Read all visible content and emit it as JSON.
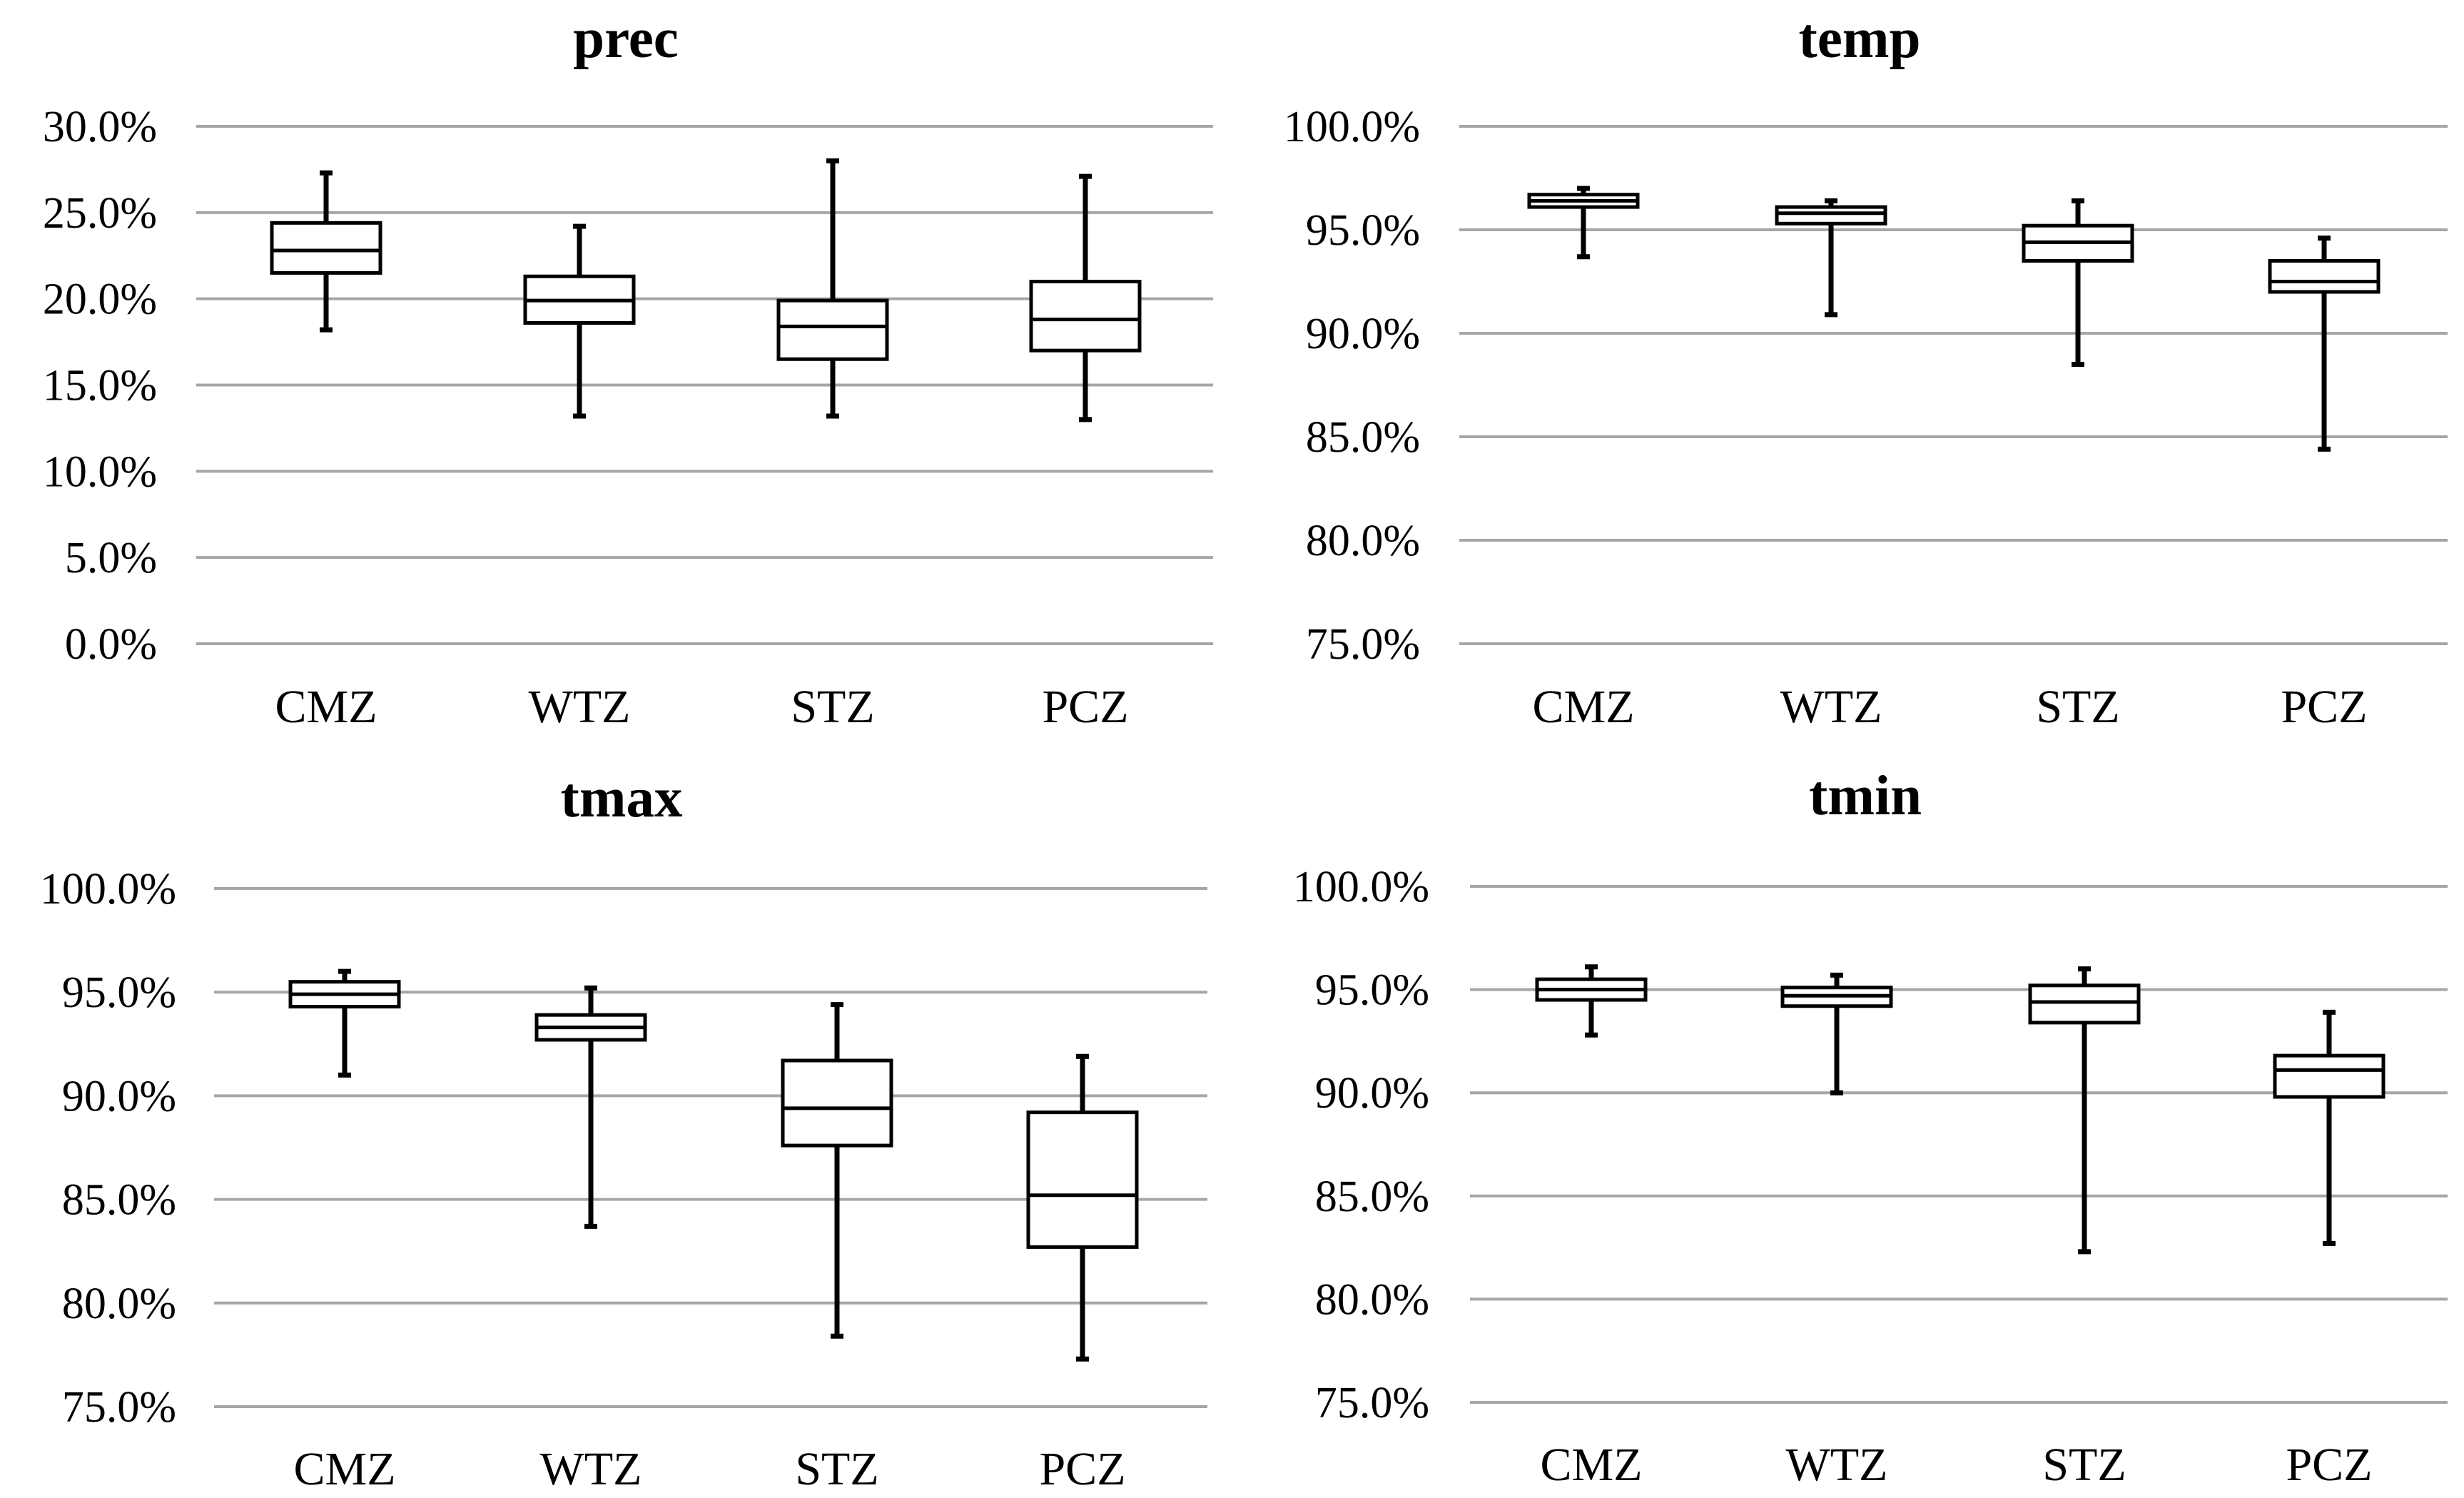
{
  "chart_data": [
    {
      "type": "boxplot",
      "title": "prec",
      "categories": [
        "CMZ",
        "WTZ",
        "STZ",
        "PCZ"
      ],
      "y_ticks": [
        "0.0%",
        "5.0%",
        "10.0%",
        "15.0%",
        "20.0%",
        "25.0%",
        "30.0%"
      ],
      "ylim": [
        0,
        30
      ],
      "boxes": [
        {
          "name": "CMZ",
          "min": 18.2,
          "q1": 21.5,
          "median": 22.8,
          "q3": 24.4,
          "max": 27.3
        },
        {
          "name": "WTZ",
          "min": 13.2,
          "q1": 18.6,
          "median": 19.9,
          "q3": 21.3,
          "max": 24.2
        },
        {
          "name": "STZ",
          "min": 13.2,
          "q1": 16.5,
          "median": 18.4,
          "q3": 19.9,
          "max": 28.0
        },
        {
          "name": "PCZ",
          "min": 13.0,
          "q1": 17.0,
          "median": 18.8,
          "q3": 21.0,
          "max": 27.1
        }
      ]
    },
    {
      "type": "boxplot",
      "title": "temp",
      "categories": [
        "CMZ",
        "WTZ",
        "STZ",
        "PCZ"
      ],
      "y_ticks": [
        "75.0%",
        "80.0%",
        "85.0%",
        "90.0%",
        "95.0%",
        "100.0%"
      ],
      "ylim": [
        75,
        100
      ],
      "boxes": [
        {
          "name": "CMZ",
          "min": 93.7,
          "q1": 96.1,
          "median": 96.4,
          "q3": 96.7,
          "max": 97.0
        },
        {
          "name": "WTZ",
          "min": 90.9,
          "q1": 95.3,
          "median": 95.8,
          "q3": 96.1,
          "max": 96.4
        },
        {
          "name": "STZ",
          "min": 88.5,
          "q1": 93.5,
          "median": 94.4,
          "q3": 95.2,
          "max": 96.4
        },
        {
          "name": "PCZ",
          "min": 84.4,
          "q1": 92.0,
          "median": 92.5,
          "q3": 93.5,
          "max": 94.6
        }
      ]
    },
    {
      "type": "boxplot",
      "title": "tmax",
      "categories": [
        "CMZ",
        "WTZ",
        "STZ",
        "PCZ"
      ],
      "y_ticks": [
        "75.0%",
        "80.0%",
        "85.0%",
        "90.0%",
        "95.0%",
        "100.0%"
      ],
      "ylim": [
        75,
        100
      ],
      "boxes": [
        {
          "name": "CMZ",
          "min": 91.0,
          "q1": 94.3,
          "median": 94.9,
          "q3": 95.5,
          "max": 96.0
        },
        {
          "name": "WTZ",
          "min": 83.7,
          "q1": 92.7,
          "median": 93.3,
          "q3": 93.9,
          "max": 95.2
        },
        {
          "name": "STZ",
          "min": 78.4,
          "q1": 87.6,
          "median": 89.4,
          "q3": 91.7,
          "max": 94.4
        },
        {
          "name": "PCZ",
          "min": 77.3,
          "q1": 82.7,
          "median": 85.2,
          "q3": 89.2,
          "max": 91.9
        }
      ]
    },
    {
      "type": "boxplot",
      "title": "tmin",
      "categories": [
        "CMZ",
        "WTZ",
        "STZ",
        "PCZ"
      ],
      "y_ticks": [
        "75.0%",
        "80.0%",
        "85.0%",
        "90.0%",
        "95.0%",
        "100.0%"
      ],
      "ylim": [
        75,
        100
      ],
      "boxes": [
        {
          "name": "CMZ",
          "min": 92.8,
          "q1": 94.5,
          "median": 95.0,
          "q3": 95.5,
          "max": 96.1
        },
        {
          "name": "WTZ",
          "min": 90.0,
          "q1": 94.2,
          "median": 94.7,
          "q3": 95.1,
          "max": 95.7
        },
        {
          "name": "STZ",
          "min": 82.3,
          "q1": 93.4,
          "median": 94.4,
          "q3": 95.2,
          "max": 96.0
        },
        {
          "name": "PCZ",
          "min": 82.7,
          "q1": 89.8,
          "median": 91.1,
          "q3": 91.8,
          "max": 93.9
        }
      ]
    }
  ]
}
